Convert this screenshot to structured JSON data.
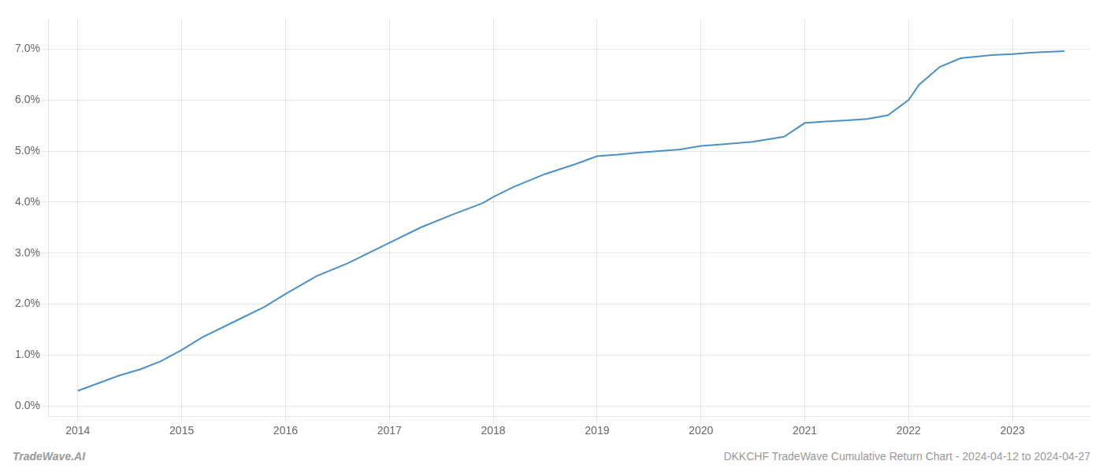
{
  "chart_data": {
    "type": "line",
    "x": [
      2014.0,
      2014.2,
      2014.4,
      2014.6,
      2014.8,
      2015.0,
      2015.2,
      2015.5,
      2015.8,
      2016.0,
      2016.3,
      2016.6,
      2016.9,
      2017.0,
      2017.3,
      2017.6,
      2017.9,
      2018.0,
      2018.2,
      2018.5,
      2018.8,
      2019.0,
      2019.2,
      2019.4,
      2019.6,
      2019.8,
      2020.0,
      2020.2,
      2020.5,
      2020.8,
      2021.0,
      2021.2,
      2021.4,
      2021.6,
      2021.8,
      2022.0,
      2022.1,
      2022.3,
      2022.5,
      2022.8,
      2023.0,
      2023.2,
      2023.5
    ],
    "values": [
      0.3,
      0.45,
      0.6,
      0.72,
      0.88,
      1.1,
      1.35,
      1.65,
      1.95,
      2.2,
      2.55,
      2.8,
      3.1,
      3.2,
      3.5,
      3.75,
      3.98,
      4.1,
      4.3,
      4.55,
      4.75,
      4.9,
      4.93,
      4.97,
      5.0,
      5.03,
      5.1,
      5.13,
      5.18,
      5.28,
      5.55,
      5.58,
      5.6,
      5.63,
      5.7,
      6.0,
      6.3,
      6.65,
      6.82,
      6.88,
      6.9,
      6.93,
      6.96
    ],
    "color": "#4a90c4",
    "xlim": [
      2013.72,
      2023.75
    ],
    "xticks": [
      2014,
      2015,
      2016,
      2017,
      2018,
      2019,
      2020,
      2021,
      2022,
      2023
    ],
    "ylim": [
      -0.2,
      7.6
    ],
    "yticks": [
      {
        "value": 0.0,
        "label": "0.0%"
      },
      {
        "value": 1.0,
        "label": "1.0%"
      },
      {
        "value": 2.0,
        "label": "2.0%"
      },
      {
        "value": 3.0,
        "label": "3.0%"
      },
      {
        "value": 4.0,
        "label": "4.0%"
      },
      {
        "value": 5.0,
        "label": "5.0%"
      },
      {
        "value": 6.0,
        "label": "6.0%"
      },
      {
        "value": 7.0,
        "label": "7.0%"
      }
    ],
    "grid": true,
    "annotations": [
      "TradeWave.AI",
      "DKKCHF TradeWave Cumulative Return Chart - 2024-04-12 to 2024-04-27"
    ]
  }
}
